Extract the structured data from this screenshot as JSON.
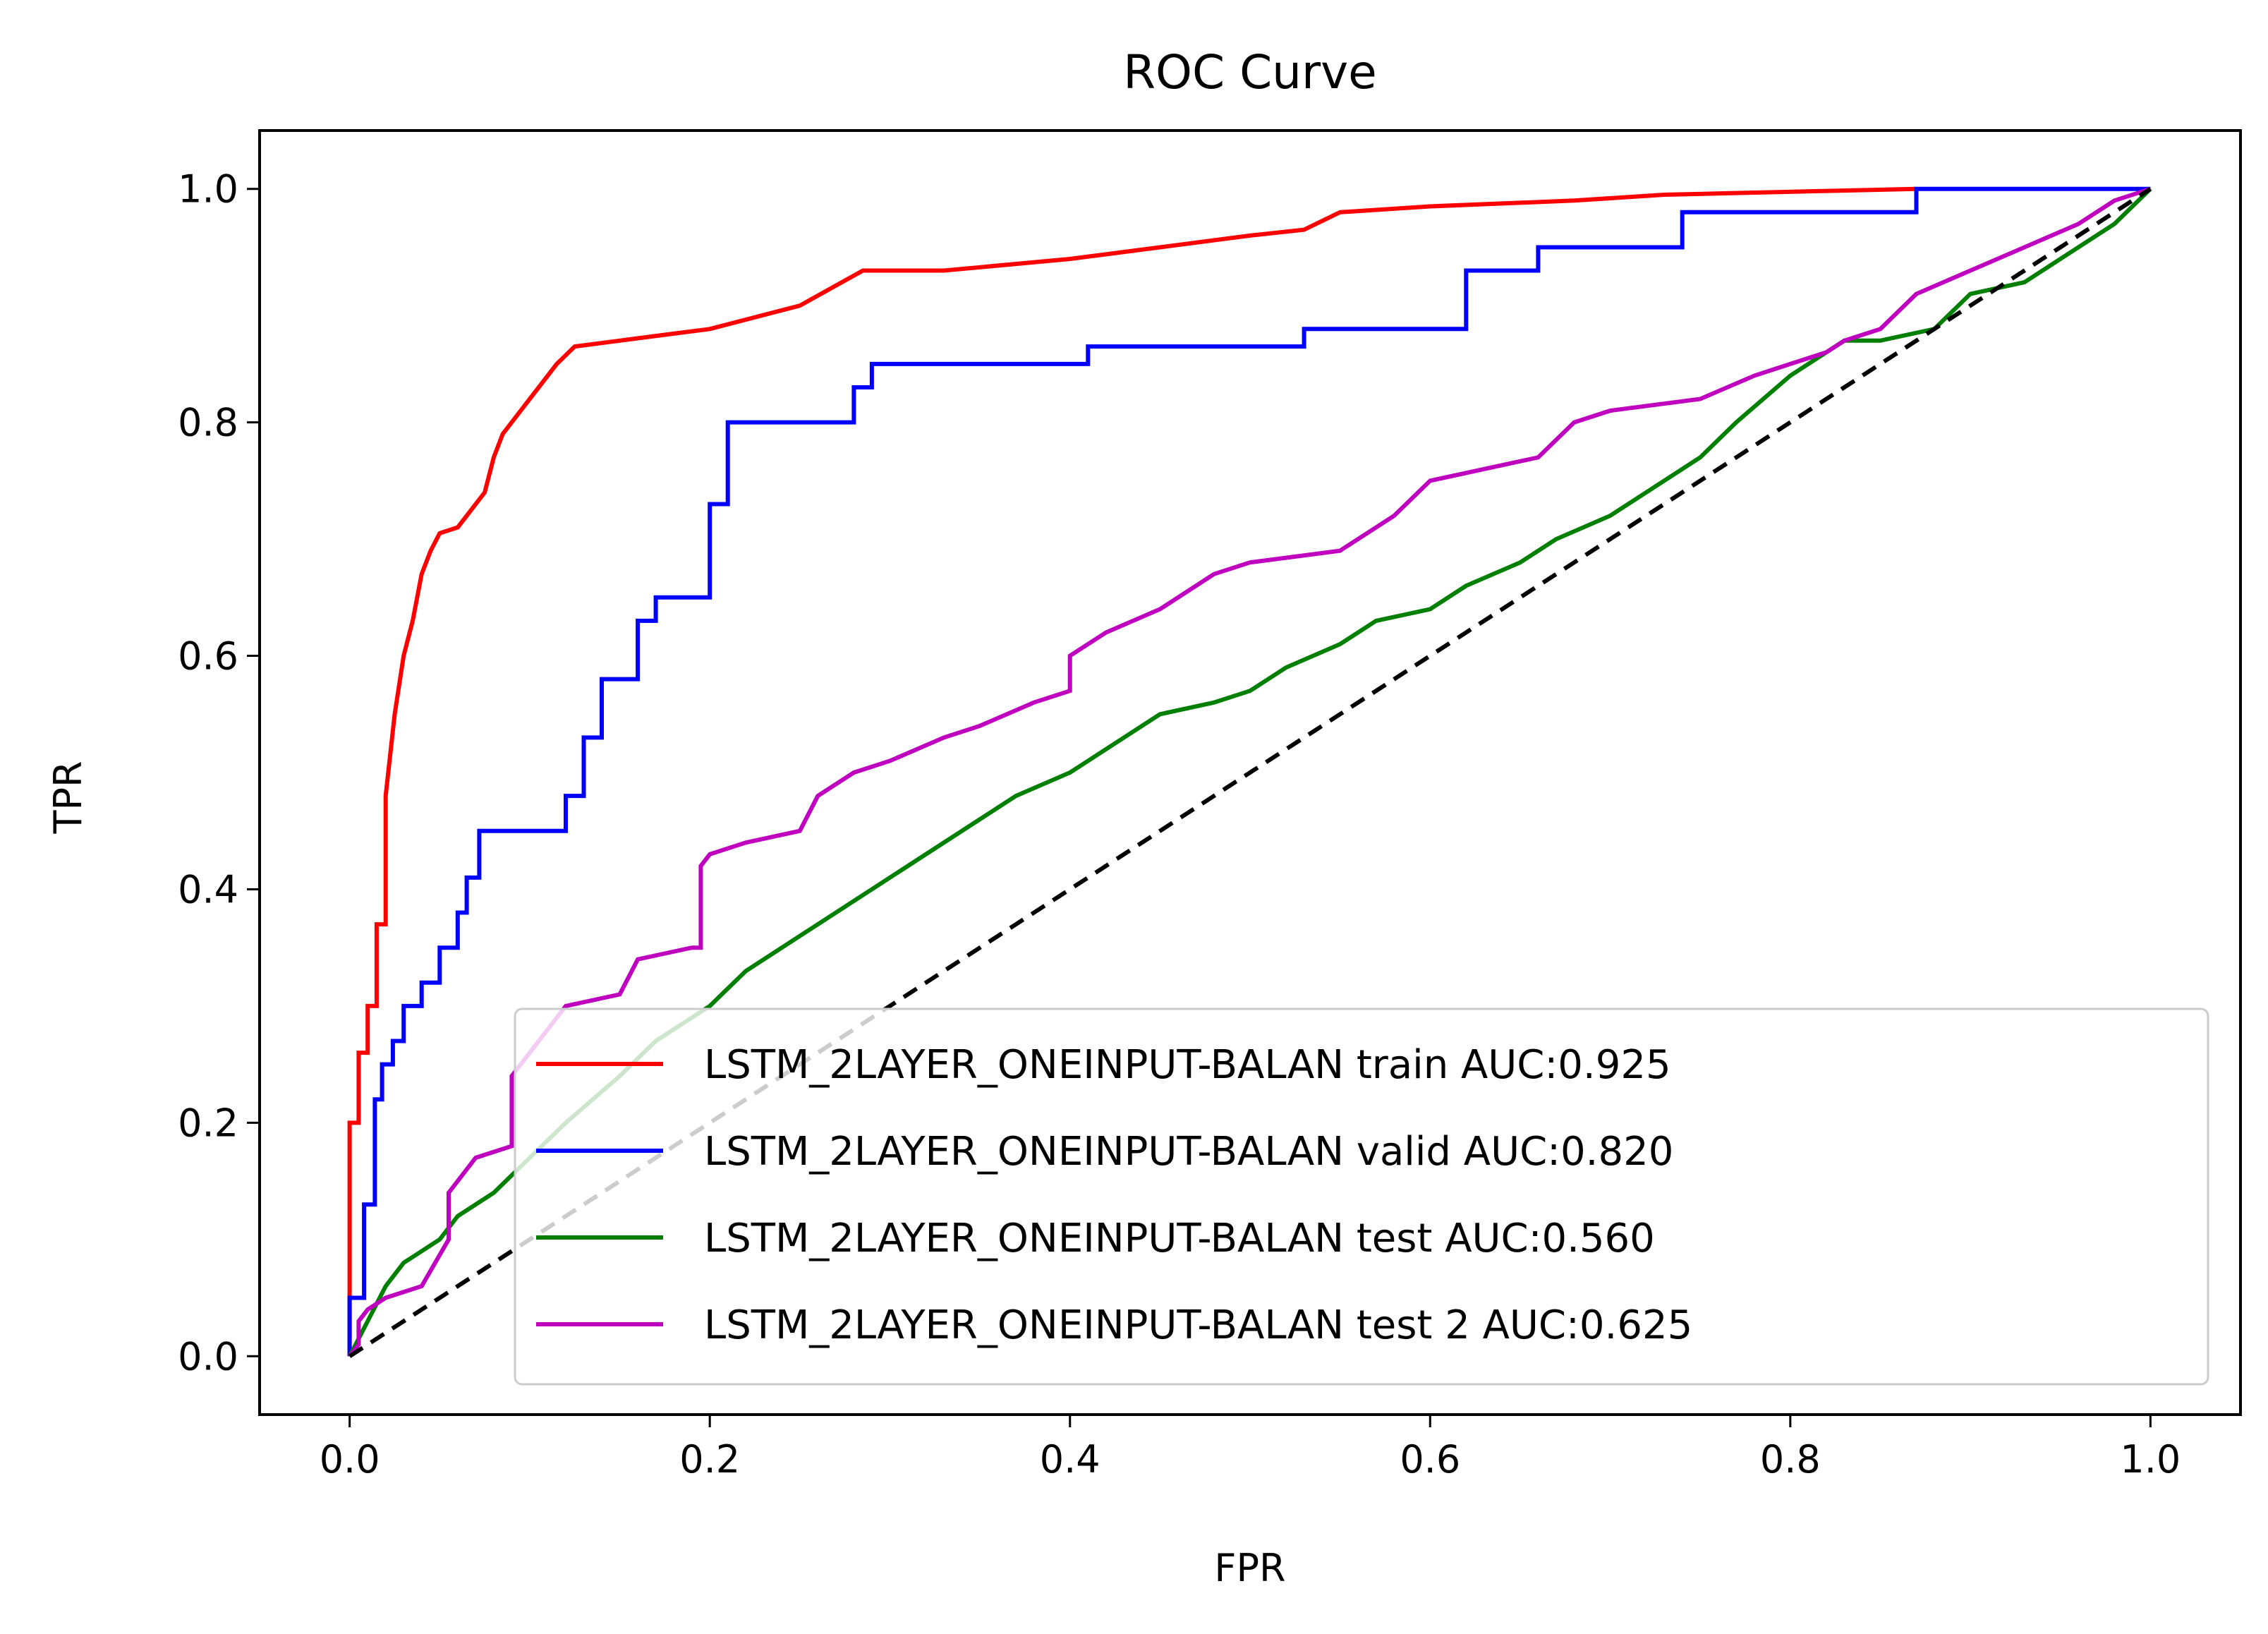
{
  "chart_data": {
    "type": "line",
    "title": "ROC Curve",
    "xlabel": "FPR",
    "ylabel": "TPR",
    "xlim": [
      -0.05,
      1.05
    ],
    "ylim": [
      -0.05,
      1.05
    ],
    "xticks": [
      "0.0",
      "0.2",
      "0.4",
      "0.6",
      "0.8",
      "1.0"
    ],
    "yticks": [
      "0.0",
      "0.2",
      "0.4",
      "0.6",
      "0.8",
      "1.0"
    ],
    "grid": false,
    "legend_position": "lower-right",
    "series": [
      {
        "name": "LSTM_2LAYER_ONEINPUT-BALAN train AUC:0.925",
        "color": "#ff0000",
        "x": [
          0,
          0,
          0.005,
          0.005,
          0.01,
          0.01,
          0.015,
          0.015,
          0.02,
          0.02,
          0.025,
          0.03,
          0.035,
          0.04,
          0.045,
          0.05,
          0.06,
          0.065,
          0.075,
          0.08,
          0.085,
          0.09,
          0.095,
          0.1,
          0.105,
          0.11,
          0.115,
          0.125,
          0.15,
          0.175,
          0.2,
          0.25,
          0.285,
          0.33,
          0.4,
          0.45,
          0.5,
          0.53,
          0.55,
          0.6,
          0.68,
          0.73,
          0.87
        ],
        "y": [
          0,
          0.2,
          0.2,
          0.26,
          0.26,
          0.3,
          0.3,
          0.37,
          0.37,
          0.48,
          0.55,
          0.6,
          0.63,
          0.67,
          0.69,
          0.705,
          0.71,
          0.72,
          0.74,
          0.77,
          0.79,
          0.8,
          0.81,
          0.82,
          0.83,
          0.84,
          0.85,
          0.865,
          0.87,
          0.875,
          0.88,
          0.9,
          0.93,
          0.93,
          0.94,
          0.95,
          0.96,
          0.965,
          0.98,
          0.985,
          0.99,
          0.995,
          1.0
        ]
      },
      {
        "name": "LSTM_2LAYER_ONEINPUT-BALAN valid AUC:0.820",
        "color": "#0000ff",
        "x": [
          0,
          0,
          0.008,
          0.008,
          0.014,
          0.014,
          0.018,
          0.018,
          0.024,
          0.024,
          0.03,
          0.03,
          0.04,
          0.04,
          0.05,
          0.05,
          0.06,
          0.06,
          0.065,
          0.065,
          0.072,
          0.072,
          0.12,
          0.12,
          0.13,
          0.13,
          0.14,
          0.14,
          0.16,
          0.16,
          0.17,
          0.17,
          0.2,
          0.2,
          0.21,
          0.21,
          0.28,
          0.28,
          0.29,
          0.29,
          0.41,
          0.41,
          0.53,
          0.53,
          0.62,
          0.62,
          0.66,
          0.66,
          0.74,
          0.74,
          0.87,
          0.87,
          1.0
        ],
        "y": [
          0,
          0.05,
          0.05,
          0.13,
          0.13,
          0.22,
          0.22,
          0.25,
          0.25,
          0.27,
          0.27,
          0.3,
          0.3,
          0.32,
          0.32,
          0.35,
          0.35,
          0.38,
          0.38,
          0.41,
          0.41,
          0.45,
          0.45,
          0.48,
          0.48,
          0.53,
          0.53,
          0.58,
          0.58,
          0.63,
          0.63,
          0.65,
          0.65,
          0.73,
          0.73,
          0.8,
          0.8,
          0.83,
          0.83,
          0.85,
          0.85,
          0.865,
          0.865,
          0.88,
          0.88,
          0.93,
          0.93,
          0.95,
          0.95,
          0.98,
          0.98,
          1.0,
          1.0
        ]
      },
      {
        "name": "LSTM_2LAYER_ONEINPUT-BALAN test AUC:0.560",
        "color": "#007f00",
        "x": [
          0,
          0.01,
          0.02,
          0.03,
          0.04,
          0.05,
          0.06,
          0.08,
          0.1,
          0.12,
          0.15,
          0.17,
          0.2,
          0.22,
          0.25,
          0.28,
          0.3,
          0.32,
          0.35,
          0.37,
          0.4,
          0.43,
          0.45,
          0.48,
          0.5,
          0.52,
          0.55,
          0.57,
          0.6,
          0.62,
          0.65,
          0.67,
          0.7,
          0.72,
          0.75,
          0.77,
          0.8,
          0.83,
          0.85,
          0.88,
          0.9,
          0.93,
          0.95,
          0.98,
          1.0
        ],
        "y": [
          0,
          0.03,
          0.06,
          0.08,
          0.09,
          0.1,
          0.12,
          0.14,
          0.17,
          0.2,
          0.24,
          0.27,
          0.3,
          0.33,
          0.36,
          0.39,
          0.41,
          0.43,
          0.46,
          0.48,
          0.5,
          0.53,
          0.55,
          0.56,
          0.57,
          0.59,
          0.61,
          0.63,
          0.64,
          0.66,
          0.68,
          0.7,
          0.72,
          0.74,
          0.77,
          0.8,
          0.84,
          0.87,
          0.87,
          0.88,
          0.91,
          0.92,
          0.94,
          0.97,
          1.0
        ]
      },
      {
        "name": "LSTM_2LAYER_ONEINPUT-BALAN test 2 AUC:0.625",
        "color": "#bf00bf",
        "x": [
          0,
          0.005,
          0.005,
          0.01,
          0.02,
          0.04,
          0.055,
          0.055,
          0.07,
          0.09,
          0.09,
          0.12,
          0.15,
          0.16,
          0.19,
          0.195,
          0.195,
          0.2,
          0.22,
          0.25,
          0.26,
          0.28,
          0.3,
          0.33,
          0.35,
          0.38,
          0.4,
          0.4,
          0.42,
          0.45,
          0.48,
          0.5,
          0.55,
          0.58,
          0.6,
          0.63,
          0.66,
          0.68,
          0.7,
          0.75,
          0.78,
          0.8,
          0.82,
          0.83,
          0.85,
          0.87,
          0.9,
          0.93,
          0.96,
          0.98,
          1.0
        ],
        "y": [
          0,
          0.01,
          0.03,
          0.04,
          0.05,
          0.06,
          0.1,
          0.14,
          0.17,
          0.18,
          0.24,
          0.3,
          0.31,
          0.34,
          0.35,
          0.35,
          0.42,
          0.43,
          0.44,
          0.45,
          0.48,
          0.5,
          0.51,
          0.53,
          0.54,
          0.56,
          0.57,
          0.6,
          0.62,
          0.64,
          0.67,
          0.68,
          0.69,
          0.72,
          0.75,
          0.76,
          0.77,
          0.8,
          0.81,
          0.82,
          0.84,
          0.85,
          0.86,
          0.87,
          0.88,
          0.91,
          0.93,
          0.95,
          0.97,
          0.99,
          1.0
        ]
      },
      {
        "name": "",
        "color": "#000000",
        "dashed": true,
        "x": [
          0,
          1
        ],
        "y": [
          0,
          1
        ]
      }
    ]
  }
}
